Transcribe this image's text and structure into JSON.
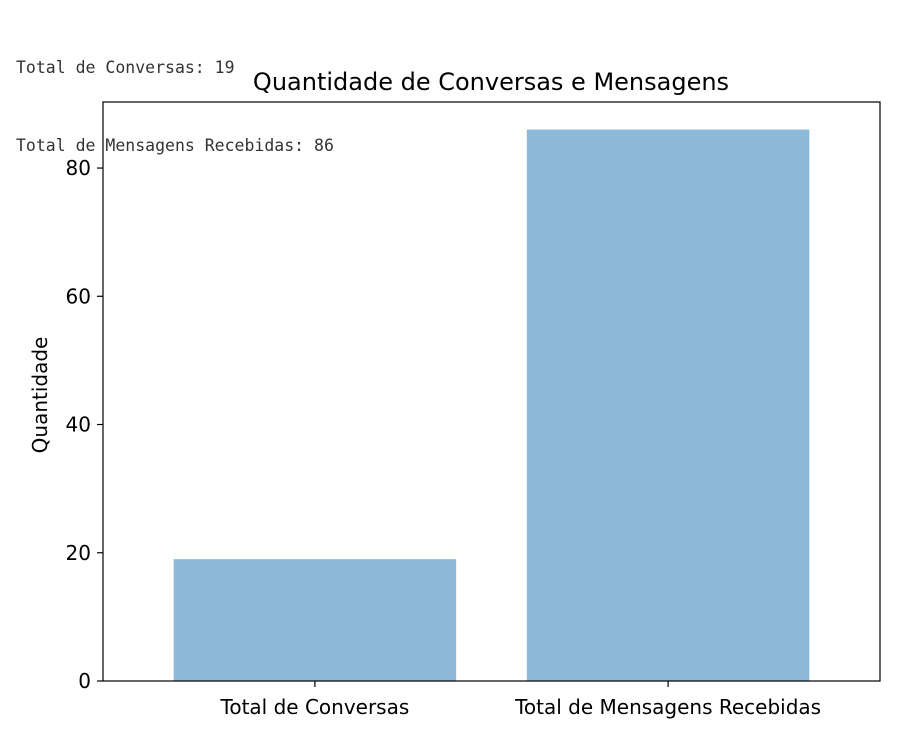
{
  "console_output": {
    "line1": "Total de Conversas: 19",
    "line2": "Total de Mensagens Recebidas: 86"
  },
  "chart_data": {
    "type": "bar",
    "title": "Quantidade de Conversas e Mensagens",
    "xlabel": "",
    "ylabel": "Quantidade",
    "categories": [
      "Total de Conversas",
      "Total de Mensagens Recebidas"
    ],
    "values": [
      19,
      86
    ],
    "ylim": [
      0,
      90.3
    ],
    "yticks": [
      0,
      20,
      40,
      60,
      80
    ],
    "bar_color": "#8db9d9",
    "grid": false,
    "legend": "none"
  }
}
